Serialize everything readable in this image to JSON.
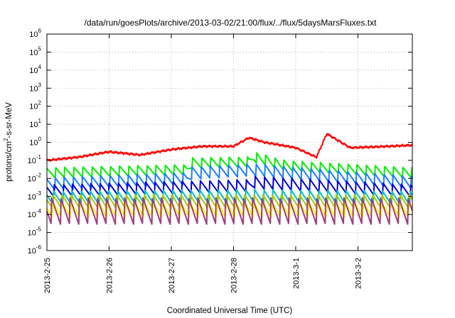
{
  "chart_data": {
    "type": "line",
    "title": "/data/run/goesPlots/archive/2013-03-02/21:00/flux/../flux/5daysMarsFluxes.txt",
    "xlabel": "Coordinated Universal Time (UTC)",
    "ylabel": {
      "base": "protons/cm",
      "sup": "2",
      "rest": "-s-sr-MeV"
    },
    "yscale": "log",
    "ylim": [
      1e-06,
      1000000.0
    ],
    "xlim": [
      "2013-02-25T00:00",
      "2013-03-02T21:00"
    ],
    "grid": true,
    "legend": "none",
    "x_ticks": [
      "2013-2-25",
      "2013-2-26",
      "2013-2-27",
      "2013-2-28",
      "2013-3-1",
      "2013-3-2"
    ],
    "y_ticks": [
      {
        "base": "10",
        "exp": "-6"
      },
      {
        "base": "10",
        "exp": "-5"
      },
      {
        "base": "10",
        "exp": "-4"
      },
      {
        "base": "10",
        "exp": "-3"
      },
      {
        "base": "10",
        "exp": "-2"
      },
      {
        "base": "10",
        "exp": "-1"
      },
      {
        "base": "10",
        "exp": "0"
      },
      {
        "base": "10",
        "exp": "1"
      },
      {
        "base": "10",
        "exp": "2"
      },
      {
        "base": "10",
        "exp": "3"
      },
      {
        "base": "10",
        "exp": "4"
      },
      {
        "base": "10",
        "exp": "5"
      },
      {
        "base": "10",
        "exp": "6"
      }
    ],
    "series": [
      {
        "color": "#ff0000",
        "sawtooth_cycles": 0,
        "envelope": [
          [
            "2013-02-25T00:00",
            0.1
          ],
          [
            "2013-02-25T12:00",
            0.15
          ],
          [
            "2013-02-26T00:00",
            0.3
          ],
          [
            "2013-02-26T12:00",
            0.2
          ],
          [
            "2013-02-27T00:00",
            0.4
          ],
          [
            "2013-02-27T12:00",
            0.6
          ],
          [
            "2013-02-28T00:00",
            0.6
          ],
          [
            "2013-02-28T06:00",
            1.8
          ],
          [
            "2013-02-28T12:00",
            1.0
          ],
          [
            "2013-03-01T00:00",
            0.5
          ],
          [
            "2013-03-01T08:00",
            0.15
          ],
          [
            "2013-03-01T12:00",
            3.0
          ],
          [
            "2013-03-01T21:00",
            0.5
          ],
          [
            "2013-03-02T12:00",
            0.6
          ],
          [
            "2013-03-02T21:00",
            0.7
          ]
        ]
      },
      {
        "color": "#00ee00",
        "sawtooth_cycles": 40,
        "amplitude": 0.3,
        "envelope": [
          [
            "2013-02-25T00:00",
            0.02
          ],
          [
            "2013-02-27T06:00",
            0.03
          ],
          [
            "2013-02-27T08:00",
            0.07
          ],
          [
            "2013-02-28T06:00",
            0.08
          ],
          [
            "2013-02-28T08:00",
            0.15
          ],
          [
            "2013-02-28T20:00",
            0.05
          ],
          [
            "2013-03-02T21:00",
            0.02
          ]
        ]
      },
      {
        "color": "#1a7fff",
        "sawtooth_cycles": 40,
        "amplitude": 0.35,
        "envelope": [
          [
            "2013-02-25T00:00",
            0.005
          ],
          [
            "2013-02-27T06:00",
            0.01
          ],
          [
            "2013-02-27T08:00",
            0.02
          ],
          [
            "2013-02-28T08:00",
            0.03
          ],
          [
            "2013-03-02T21:00",
            0.006
          ]
        ]
      },
      {
        "color": "#0000dd",
        "sawtooth_cycles": 40,
        "amplitude": 0.35,
        "envelope": [
          [
            "2013-02-25T00:00",
            0.002
          ],
          [
            "2013-02-28T06:00",
            0.004
          ],
          [
            "2013-02-28T08:00",
            0.006
          ],
          [
            "2013-03-02T21:00",
            0.002
          ]
        ]
      },
      {
        "color": "#00c0c0",
        "sawtooth_cycles": 40,
        "amplitude": 0.4,
        "envelope": [
          [
            "2013-02-25T00:00",
            0.0008
          ],
          [
            "2013-02-28T06:00",
            0.001
          ],
          [
            "2013-03-02T21:00",
            0.0008
          ]
        ]
      },
      {
        "color": "#a0cc00",
        "sawtooth_cycles": 40,
        "amplitude": 0.4,
        "envelope": [
          [
            "2013-02-25T00:00",
            0.0005
          ],
          [
            "2013-03-02T21:00",
            0.0005
          ]
        ]
      },
      {
        "color": "#ffff00",
        "sawtooth_cycles": 40,
        "amplitude": 0.45,
        "envelope": [
          [
            "2013-02-25T00:00",
            0.0002
          ],
          [
            "2013-03-02T21:00",
            0.0002
          ]
        ]
      },
      {
        "color": "#a03c80",
        "sawtooth_cycles": 40,
        "amplitude": 0.75,
        "envelope": [
          [
            "2013-02-25T00:00",
            0.00015
          ],
          [
            "2013-03-02T21:00",
            0.00015
          ]
        ]
      }
    ]
  }
}
